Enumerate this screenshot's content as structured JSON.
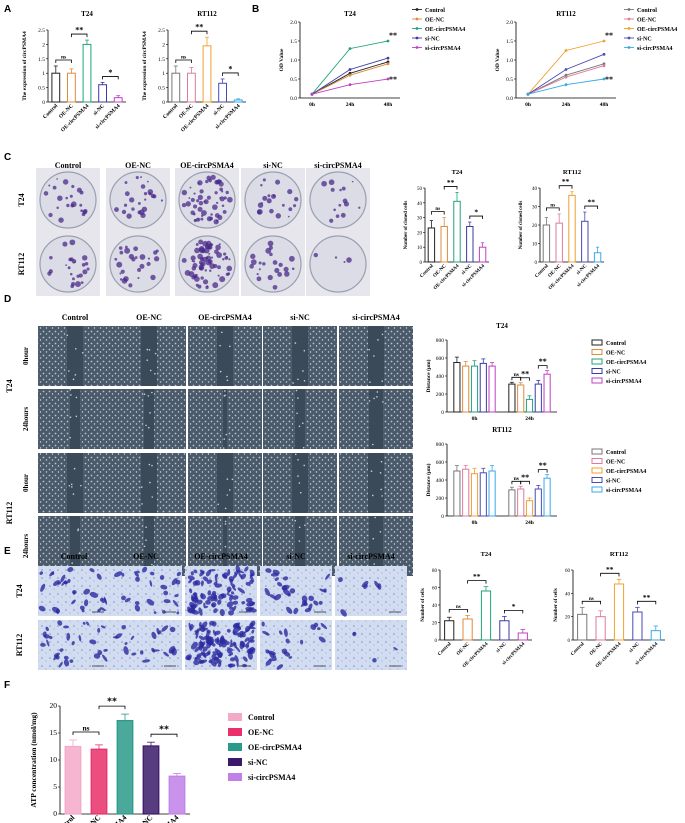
{
  "panel_labels": [
    "A",
    "B",
    "C",
    "D",
    "E",
    "F"
  ],
  "colors": {
    "control": "#222222",
    "oe_nc": "#e08a3a",
    "oe_circ": "#1fa37a",
    "si_nc": "#3a3aa8",
    "si_circ": "#c040c0",
    "rt_control": "#777777",
    "rt_oe_nc": "#e07a9a",
    "rt_oe_circ": "#f0a030",
    "rt_si_nc": "#4a4ab8",
    "rt_si_circ": "#3aa8e8",
    "purple_stain": "#4a2a8a",
    "dish_bg": "#dcdce6",
    "wound_bg": "#3a4a58",
    "transwell_bg": "#c8d4ec"
  },
  "groups": [
    "Control",
    "OE-NC",
    "OE-circPSMA4",
    "si-NC",
    "si-circPSMA4"
  ],
  "C": {
    "row_labels": [
      "T24",
      "RT112"
    ]
  },
  "D": {
    "cell_labels": [
      "T24",
      "RT112"
    ],
    "time_labels": [
      "0hour",
      "24hours"
    ]
  },
  "E": {
    "row_labels": [
      "T24",
      "RT112"
    ]
  },
  "chart_data": [
    {
      "id": "A-T24",
      "type": "bar",
      "title": "T24",
      "ylabel": "The expression of circPSMA4",
      "ylim": [
        0,
        2.5
      ],
      "yticks": [
        0,
        0.5,
        1.0,
        1.5,
        2.0,
        2.5
      ],
      "categories": [
        "Control",
        "OE-NC",
        "OE-circPSMA4",
        "si-NC",
        "si-circPSMA4"
      ],
      "values": [
        1.0,
        1.0,
        2.0,
        0.6,
        0.15
      ],
      "errors": [
        0.25,
        0.15,
        0.15,
        0.08,
        0.07
      ],
      "sig": [
        {
          "from": 1,
          "to": 2,
          "label": "**"
        },
        {
          "from": 3,
          "to": 4,
          "label": "*"
        },
        {
          "from": 0,
          "to": 1,
          "label": "ns"
        }
      ]
    },
    {
      "id": "A-RT112",
      "type": "bar",
      "title": "RT112",
      "ylabel": "The expression of circPSMA4",
      "ylim": [
        0,
        2.5
      ],
      "yticks": [
        0,
        0.5,
        1.0,
        1.5,
        2.0,
        2.5
      ],
      "categories": [
        "Control",
        "OE-NC",
        "OE-circPSMA4",
        "si-NC",
        "si-circPSMA4"
      ],
      "values": [
        1.0,
        1.0,
        1.95,
        0.65,
        0.07
      ],
      "errors": [
        0.25,
        0.2,
        0.3,
        0.15,
        0.04
      ],
      "sig": [
        {
          "from": 1,
          "to": 2,
          "label": "**"
        },
        {
          "from": 3,
          "to": 4,
          "label": "*"
        },
        {
          "from": 0,
          "to": 1,
          "label": "ns"
        }
      ]
    },
    {
      "id": "B-T24",
      "type": "line",
      "title": "T24",
      "ylabel": "OD Value",
      "x": [
        "0h",
        "24h",
        "48h"
      ],
      "ylim": [
        0,
        2.0
      ],
      "yticks": [
        0.0,
        0.5,
        1.0,
        1.5,
        2.0
      ],
      "series": [
        {
          "name": "Control",
          "values": [
            0.1,
            0.65,
            0.95
          ]
        },
        {
          "name": "OE-NC",
          "values": [
            0.1,
            0.6,
            0.9
          ]
        },
        {
          "name": "OE-circPSMA4",
          "values": [
            0.1,
            1.3,
            1.5
          ]
        },
        {
          "name": "si-NC",
          "values": [
            0.1,
            0.75,
            1.05
          ]
        },
        {
          "name": "si-circPSMA4",
          "values": [
            0.1,
            0.35,
            0.5
          ]
        }
      ],
      "sig": [
        "**",
        "**"
      ]
    },
    {
      "id": "B-RT112",
      "type": "line",
      "title": "RT112",
      "ylabel": "OD Value",
      "x": [
        "0h",
        "24h",
        "48h"
      ],
      "ylim": [
        0,
        2.0
      ],
      "yticks": [
        0.0,
        0.5,
        1.0,
        1.5,
        2.0
      ],
      "series": [
        {
          "name": "Control",
          "values": [
            0.1,
            0.6,
            0.9
          ]
        },
        {
          "name": "OE-NC",
          "values": [
            0.1,
            0.55,
            0.85
          ]
        },
        {
          "name": "OE-circPSMA4",
          "values": [
            0.1,
            1.25,
            1.5
          ]
        },
        {
          "name": "si-NC",
          "values": [
            0.1,
            0.75,
            1.15
          ]
        },
        {
          "name": "si-circPSMA4",
          "values": [
            0.1,
            0.35,
            0.5
          ]
        }
      ],
      "sig": [
        "**",
        "**"
      ]
    },
    {
      "id": "C-T24",
      "type": "bar",
      "title": "T24",
      "ylabel": "Number of cloned cells",
      "ylim": [
        0,
        50
      ],
      "yticks": [
        0,
        10,
        20,
        30,
        40,
        50
      ],
      "categories": [
        "Control",
        "OE-NC",
        "OE-circPSMA4",
        "si-NC",
        "si-circPSMA4"
      ],
      "values": [
        23,
        24,
        41,
        24,
        10
      ],
      "errors": [
        5,
        6,
        6,
        3,
        3
      ],
      "sig": [
        {
          "from": 1,
          "to": 2,
          "label": "**"
        },
        {
          "from": 3,
          "to": 4,
          "label": "*"
        },
        {
          "from": 0,
          "to": 1,
          "label": "ns"
        }
      ]
    },
    {
      "id": "C-RT112",
      "type": "bar",
      "title": "RT112",
      "ylabel": "Number of cloned cells",
      "ylim": [
        0,
        40
      ],
      "yticks": [
        0,
        10,
        20,
        30,
        40
      ],
      "categories": [
        "Control",
        "OE-NC",
        "OE-circPSMA4",
        "si-NC",
        "si-circPSMA4"
      ],
      "values": [
        20,
        21,
        36,
        22,
        5
      ],
      "errors": [
        4,
        5,
        2,
        5,
        3
      ],
      "sig": [
        {
          "from": 1,
          "to": 2,
          "label": "**"
        },
        {
          "from": 3,
          "to": 4,
          "label": "**"
        },
        {
          "from": 0,
          "to": 1,
          "label": "ns"
        }
      ]
    },
    {
      "id": "D-T24",
      "type": "bar",
      "title": "T24",
      "ylabel": "Distance (μm)",
      "ylim": [
        0,
        800
      ],
      "yticks": [
        0,
        200,
        400,
        600,
        800
      ],
      "categories": [
        "0h",
        "24h"
      ],
      "series": [
        {
          "name": "Control",
          "values": [
            550,
            310
          ],
          "errors": [
            60,
            20
          ]
        },
        {
          "name": "OE-NC",
          "values": [
            510,
            300
          ],
          "errors": [
            50,
            25
          ]
        },
        {
          "name": "OE-circPSMA4",
          "values": [
            510,
            140
          ],
          "errors": [
            60,
            40
          ]
        },
        {
          "name": "si-NC",
          "values": [
            540,
            310
          ],
          "errors": [
            50,
            40
          ]
        },
        {
          "name": "si-circPSMA4",
          "values": [
            510,
            420
          ],
          "errors": [
            40,
            40
          ]
        }
      ],
      "sig": [
        {
          "group": 1,
          "from": 0,
          "to": 1,
          "label": "ns"
        },
        {
          "group": 1,
          "from": 1,
          "to": 2,
          "label": "**"
        },
        {
          "group": 1,
          "from": 3,
          "to": 4,
          "label": "**"
        }
      ]
    },
    {
      "id": "D-RT112",
      "type": "bar",
      "title": "RT112",
      "ylabel": "Distance (μm)",
      "ylim": [
        0,
        800
      ],
      "yticks": [
        0,
        200,
        400,
        600,
        800
      ],
      "categories": [
        "0h",
        "24h"
      ],
      "series": [
        {
          "name": "Control",
          "values": [
            500,
            290
          ],
          "errors": [
            60,
            30
          ]
        },
        {
          "name": "OE-NC",
          "values": [
            520,
            300
          ],
          "errors": [
            40,
            30
          ]
        },
        {
          "name": "OE-circPSMA4",
          "values": [
            470,
            170
          ],
          "errors": [
            60,
            30
          ]
        },
        {
          "name": "si-NC",
          "values": [
            480,
            300
          ],
          "errors": [
            50,
            40
          ]
        },
        {
          "name": "si-circPSMA4",
          "values": [
            500,
            420
          ],
          "errors": [
            60,
            40
          ]
        }
      ],
      "sig": [
        {
          "group": 1,
          "from": 0,
          "to": 1,
          "label": "ns"
        },
        {
          "group": 1,
          "from": 1,
          "to": 2,
          "label": "**"
        },
        {
          "group": 1,
          "from": 3,
          "to": 4,
          "label": "**"
        }
      ]
    },
    {
      "id": "E-T24",
      "type": "bar",
      "title": "T24",
      "ylabel": "Number of cells",
      "ylim": [
        0,
        80
      ],
      "yticks": [
        0,
        20,
        40,
        60,
        80
      ],
      "categories": [
        "Control",
        "OE-NC",
        "OE-circPSMA4",
        "si-NC",
        "si-circPSMA4"
      ],
      "values": [
        22,
        24,
        56,
        22,
        8
      ],
      "errors": [
        4,
        4,
        5,
        5,
        4
      ],
      "sig": [
        {
          "from": 1,
          "to": 2,
          "label": "**"
        },
        {
          "from": 3,
          "to": 4,
          "label": "*"
        },
        {
          "from": 0,
          "to": 1,
          "label": "ns"
        }
      ]
    },
    {
      "id": "E-RT112",
      "type": "bar",
      "title": "RT112",
      "ylabel": "Number of cells",
      "ylim": [
        0,
        60
      ],
      "yticks": [
        0,
        20,
        40,
        60
      ],
      "categories": [
        "Control",
        "OE-NC",
        "OE-circPSMA4",
        "si-NC",
        "si-circPSMA4"
      ],
      "values": [
        22,
        20,
        48,
        24,
        8
      ],
      "errors": [
        6,
        5,
        4,
        4,
        4
      ],
      "sig": [
        {
          "from": 1,
          "to": 2,
          "label": "**"
        },
        {
          "from": 3,
          "to": 4,
          "label": "**"
        },
        {
          "from": 0,
          "to": 1,
          "label": "ns"
        }
      ]
    },
    {
      "id": "F",
      "type": "bar",
      "title": "",
      "ylabel": "ATP concentration (nmol/mg)",
      "ylim": [
        0,
        20
      ],
      "yticks": [
        0,
        5,
        10,
        15,
        20
      ],
      "categories": [
        "Control",
        "OE-NC",
        "OE-circPSMA4",
        "si-NC",
        "si-circPSMA4"
      ],
      "values": [
        12.5,
        12.0,
        17.3,
        12.6,
        7.0
      ],
      "errors": [
        1.2,
        0.8,
        1.2,
        0.7,
        0.5
      ],
      "sig": [
        {
          "from": 1,
          "to": 2,
          "label": "**"
        },
        {
          "from": 3,
          "to": 4,
          "label": "**"
        },
        {
          "from": 0,
          "to": 1,
          "label": "ns"
        }
      ]
    }
  ]
}
